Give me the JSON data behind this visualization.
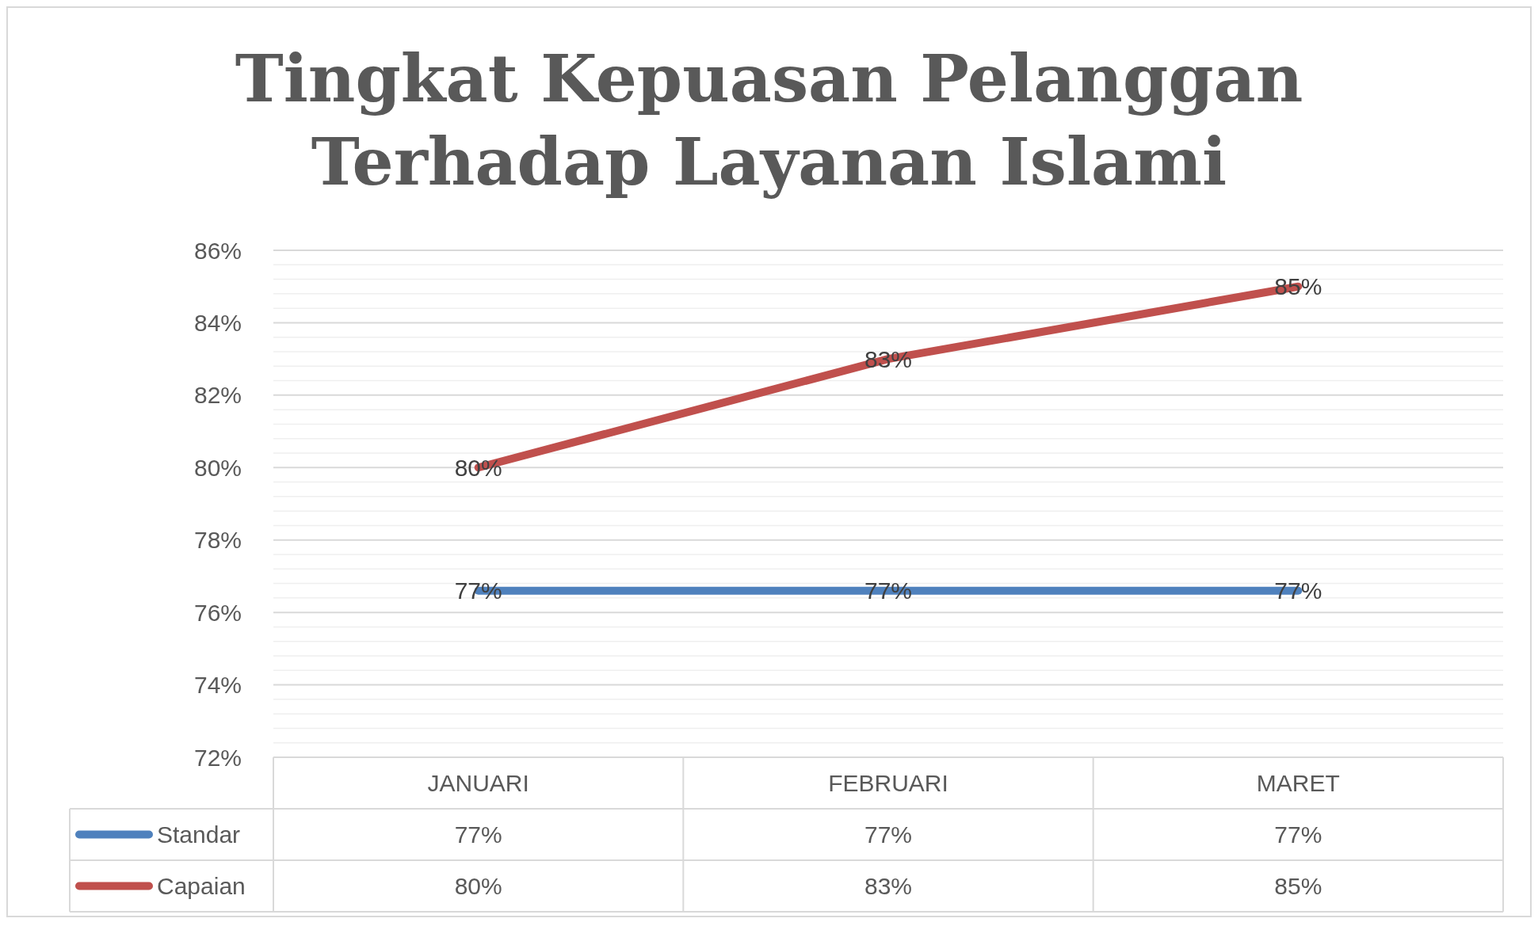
{
  "chart_data": {
    "type": "line",
    "title": "Tingkat Kepuasan Pelanggan Terhadap Layanan Islami",
    "categories": [
      "JANUARI",
      "FEBRUARI",
      "MARET"
    ],
    "series": [
      {
        "name": "Standar",
        "color": "#4f81bd",
        "values": [
          76.6,
          76.6,
          76.6
        ],
        "value_labels": [
          "77%",
          "77%",
          "77%"
        ]
      },
      {
        "name": "Capaian",
        "color": "#c0504d",
        "values": [
          80,
          83,
          85
        ],
        "value_labels": [
          "80%",
          "83%",
          "85%"
        ]
      }
    ],
    "ylim": [
      72,
      86
    ],
    "yticks": [
      {
        "value": 72,
        "label": "72%"
      },
      {
        "value": 72.4,
        "label": null
      },
      {
        "value": 72.8,
        "label": null
      },
      {
        "value": 73.2,
        "label": null
      },
      {
        "value": 73.6,
        "label": null
      },
      {
        "value": 74,
        "label": "74%"
      },
      {
        "value": 74.4,
        "label": null
      },
      {
        "value": 74.8,
        "label": null
      },
      {
        "value": 75.2,
        "label": null
      },
      {
        "value": 75.6,
        "label": null
      },
      {
        "value": 76,
        "label": "76%"
      },
      {
        "value": 76.4,
        "label": null
      },
      {
        "value": 76.8,
        "label": null
      },
      {
        "value": 77.2,
        "label": null
      },
      {
        "value": 77.6,
        "label": null
      },
      {
        "value": 78,
        "label": "78%"
      },
      {
        "value": 78.4,
        "label": null
      },
      {
        "value": 78.8,
        "label": null
      },
      {
        "value": 79.2,
        "label": null
      },
      {
        "value": 79.6,
        "label": null
      },
      {
        "value": 80,
        "label": "80%"
      },
      {
        "value": 80.4,
        "label": null
      },
      {
        "value": 80.8,
        "label": null
      },
      {
        "value": 81.2,
        "label": null
      },
      {
        "value": 81.6,
        "label": null
      },
      {
        "value": 82,
        "label": "82%"
      },
      {
        "value": 82.4,
        "label": null
      },
      {
        "value": 82.8,
        "label": null
      },
      {
        "value": 83.2,
        "label": null
      },
      {
        "value": 83.6,
        "label": null
      },
      {
        "value": 84,
        "label": "84%"
      },
      {
        "value": 84.4,
        "label": null
      },
      {
        "value": 84.8,
        "label": null
      },
      {
        "value": 85.2,
        "label": null
      },
      {
        "value": 85.6,
        "label": null
      },
      {
        "value": 86,
        "label": "86%"
      }
    ],
    "grid": true,
    "legend": "bottom",
    "marker": "none",
    "line_style": "solid"
  }
}
